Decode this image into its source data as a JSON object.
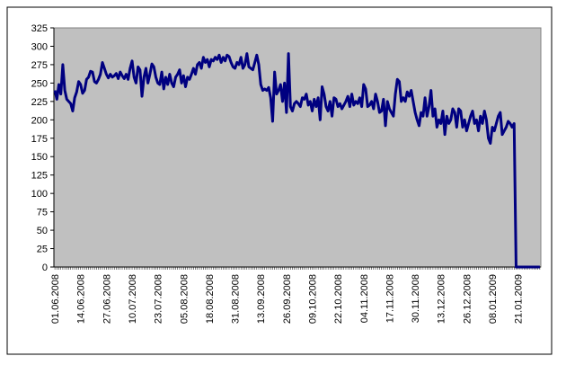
{
  "chart_data": {
    "type": "line",
    "color": "#000080",
    "grid": false,
    "ylim": [
      0,
      325
    ],
    "yticks": [
      0,
      25,
      50,
      75,
      100,
      125,
      150,
      175,
      200,
      225,
      250,
      275,
      300,
      325
    ],
    "categories": [
      "01.06.2008",
      null,
      null,
      null,
      null,
      null,
      null,
      null,
      null,
      null,
      null,
      null,
      null,
      "14.06.2008",
      null,
      null,
      null,
      null,
      null,
      null,
      null,
      null,
      null,
      null,
      null,
      null,
      "27.06.2008",
      null,
      null,
      null,
      null,
      null,
      null,
      null,
      null,
      null,
      null,
      null,
      null,
      "10.07.2008",
      null,
      null,
      null,
      null,
      null,
      null,
      null,
      null,
      null,
      null,
      null,
      null,
      "23.07.2008",
      null,
      null,
      null,
      null,
      null,
      null,
      null,
      null,
      null,
      null,
      null,
      null,
      "05.08.2008",
      null,
      null,
      null,
      null,
      null,
      null,
      null,
      null,
      null,
      null,
      null,
      null,
      "18.08.2008",
      null,
      null,
      null,
      null,
      null,
      null,
      null,
      null,
      null,
      null,
      null,
      null,
      "31.08.2008",
      null,
      null,
      null,
      null,
      null,
      null,
      null,
      null,
      null,
      null,
      null,
      null,
      "13.09.2008",
      null,
      null,
      null,
      null,
      null,
      null,
      null,
      null,
      null,
      null,
      null,
      null,
      "26.09.2008",
      null,
      null,
      null,
      null,
      null,
      null,
      null,
      null,
      null,
      null,
      null,
      null,
      "09.10.2008",
      null,
      null,
      null,
      null,
      null,
      null,
      null,
      null,
      null,
      null,
      null,
      null,
      "22.10.2008",
      null,
      null,
      null,
      null,
      null,
      null,
      null,
      null,
      null,
      null,
      null,
      null,
      "04.11.2008",
      null,
      null,
      null,
      null,
      null,
      null,
      null,
      null,
      null,
      null,
      null,
      null,
      "17.11.2008",
      null,
      null,
      null,
      null,
      null,
      null,
      null,
      null,
      null,
      null,
      null,
      null,
      "30.11.2008",
      null,
      null,
      null,
      null,
      null,
      null,
      null,
      null,
      null,
      null,
      null,
      null,
      "13.12.2008",
      null,
      null,
      null,
      null,
      null,
      null,
      null,
      null,
      null,
      null,
      null,
      null,
      "26.12.2008",
      null,
      null,
      null,
      null,
      null,
      null,
      null,
      null,
      null,
      null,
      null,
      null,
      "08.01.2009",
      null,
      null,
      null,
      null,
      null,
      null,
      null,
      null,
      null,
      null,
      null,
      null,
      "21.01.2009",
      null,
      null,
      null,
      null,
      null,
      null,
      null,
      null,
      null,
      null,
      null
    ],
    "values": [
      240,
      228,
      248,
      235,
      275,
      240,
      228,
      225,
      222,
      212,
      230,
      238,
      252,
      248,
      236,
      240,
      255,
      258,
      266,
      265,
      252,
      250,
      255,
      262,
      278,
      270,
      262,
      257,
      262,
      258,
      260,
      263,
      256,
      265,
      260,
      256,
      262,
      255,
      270,
      280,
      258,
      250,
      272,
      268,
      232,
      258,
      270,
      250,
      262,
      276,
      272,
      258,
      250,
      248,
      265,
      242,
      258,
      248,
      262,
      250,
      245,
      258,
      262,
      268,
      250,
      260,
      245,
      258,
      255,
      262,
      270,
      262,
      275,
      278,
      270,
      285,
      278,
      282,
      272,
      282,
      280,
      285,
      282,
      288,
      278,
      285,
      280,
      288,
      286,
      278,
      272,
      270,
      278,
      275,
      285,
      270,
      275,
      290,
      272,
      270,
      268,
      278,
      288,
      275,
      248,
      240,
      242,
      240,
      244,
      230,
      198,
      265,
      235,
      240,
      248,
      225,
      250,
      210,
      290,
      218,
      212,
      222,
      225,
      222,
      218,
      230,
      228,
      235,
      220,
      225,
      212,
      228,
      218,
      230,
      200,
      245,
      235,
      218,
      212,
      225,
      205,
      230,
      228,
      218,
      222,
      215,
      220,
      225,
      232,
      218,
      235,
      220,
      225,
      222,
      230,
      218,
      248,
      242,
      218,
      220,
      225,
      215,
      235,
      225,
      210,
      212,
      228,
      192,
      225,
      215,
      210,
      205,
      235,
      255,
      252,
      225,
      230,
      225,
      238,
      232,
      240,
      225,
      210,
      200,
      192,
      210,
      205,
      230,
      205,
      218,
      240,
      205,
      215,
      190,
      200,
      195,
      212,
      180,
      205,
      195,
      200,
      215,
      210,
      190,
      215,
      212,
      190,
      200,
      185,
      195,
      205,
      212,
      195,
      200,
      185,
      205,
      195,
      212,
      200,
      175,
      168,
      190,
      185,
      195,
      205,
      210,
      180,
      185,
      190,
      198,
      195,
      190,
      195,
      0,
      0,
      0,
      0,
      0,
      0,
      0,
      0,
      0,
      0,
      0,
      0,
      0
    ]
  }
}
